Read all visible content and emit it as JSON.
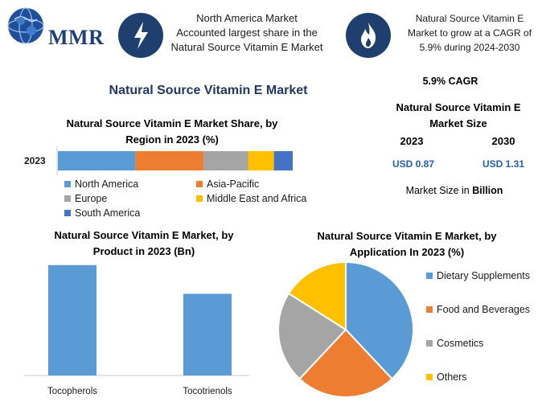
{
  "logo": {
    "text": "MMR"
  },
  "header": {
    "box1_lines": [
      "North America Market",
      "Accounted largest share in the",
      "Natural Source Vitamin E Market"
    ],
    "box2_lines": [
      "Natural Source Vitamin E",
      "Market to grow at a CAGR of",
      "5.9% during 2024-2030"
    ]
  },
  "main_title": "Natural Source Vitamin E Market",
  "kpi": {
    "cagr": "5.9% CAGR",
    "size_title_lines": [
      "Natural Source Vitamin E",
      "Market Size"
    ],
    "year1": "2023",
    "year2": "2030",
    "value1": "USD 0.87",
    "value2": "USD 1.31",
    "note_prefix": "Market Size in ",
    "note_bold": "Billion"
  },
  "colors": {
    "blue": "#5b9bd5",
    "orange": "#ed7d31",
    "gray": "#a5a5a5",
    "yellow": "#ffc000",
    "darkblue": "#4472c4",
    "title": "#1f3864"
  },
  "icons": {
    "box1": "lightning-icon",
    "box2": "flame-icon",
    "logo": "globe-icon"
  },
  "chart_data": [
    {
      "type": "bar",
      "orientation": "horizontal-stacked",
      "title": "Natural Source Vitamin E Market Share, by Region in 2023 (%)",
      "title_lines": [
        "Natural Source Vitamin E Market Share, by",
        "Region in 2023 (%)"
      ],
      "categories": [
        "2023"
      ],
      "series": [
        {
          "name": "North America",
          "values": [
            33
          ],
          "color": "#5b9bd5"
        },
        {
          "name": "Asia-Pacific",
          "values": [
            29
          ],
          "color": "#ed7d31"
        },
        {
          "name": "Europe",
          "values": [
            19
          ],
          "color": "#a5a5a5"
        },
        {
          "name": "Middle East and Africa",
          "values": [
            11
          ],
          "color": "#ffc000"
        },
        {
          "name": "South America",
          "values": [
            8
          ],
          "color": "#4472c4"
        }
      ],
      "xlim": [
        0,
        100
      ],
      "legend": "bottom"
    },
    {
      "type": "bar",
      "title": "Natural Source Vitamin E Market, by Product in 2023 (Bn)",
      "title_lines": [
        "Natural Source Vitamin E Market, by",
        "Product in 2023 (Bn)"
      ],
      "categories": [
        "Tocopherols",
        "Tocotrienols"
      ],
      "values": [
        0.5,
        0.37
      ],
      "ylim": [
        0,
        0.55
      ],
      "color": "#5b9bd5"
    },
    {
      "type": "pie",
      "title": "Natural Source Vitamin E Market, by Application In 2023 (%)",
      "title_lines": [
        "Natural Source Vitamin E Market, by",
        "Application In 2023 (%)"
      ],
      "slices": [
        {
          "name": "Dietary Supplements",
          "value": 38,
          "color": "#5b9bd5"
        },
        {
          "name": "Food and Beverages",
          "value": 24,
          "color": "#ed7d31"
        },
        {
          "name": "Cosmetics",
          "value": 22,
          "color": "#a5a5a5"
        },
        {
          "name": "Others",
          "value": 16,
          "color": "#ffc000"
        }
      ],
      "legend": "right"
    }
  ]
}
